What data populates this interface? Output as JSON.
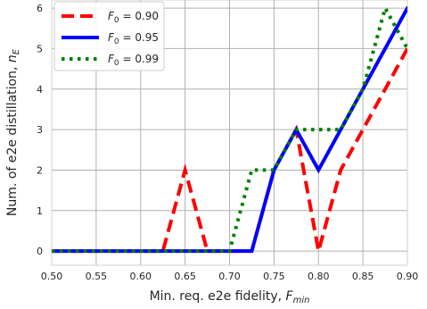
{
  "chart_data": {
    "type": "line",
    "xlabel": "Min. req. e2e fidelity, ",
    "xlabel_var": "F",
    "xlabel_sub": "min",
    "ylabel": "Num. of e2e distillation, ",
    "ylabel_var": "n",
    "ylabel_sub": "E",
    "xlim": [
      0.5,
      0.9
    ],
    "ylim": [
      -0.35,
      6.2
    ],
    "xticks": [
      "0.50",
      "0.55",
      "0.60",
      "0.65",
      "0.70",
      "0.75",
      "0.80",
      "0.85",
      "0.90"
    ],
    "yticks": [
      "0",
      "1",
      "2",
      "3",
      "4",
      "5",
      "6"
    ],
    "grid": true,
    "legend_position": "upper-left",
    "series": [
      {
        "name": "0.90",
        "legend_prefix": "F",
        "legend_sub": "0",
        "color": "#ff0000",
        "style": "dashed",
        "x": [
          0.5,
          0.525,
          0.55,
          0.575,
          0.6,
          0.625,
          0.65,
          0.675,
          0.7,
          0.725,
          0.75,
          0.775,
          0.8,
          0.825,
          0.85,
          0.875,
          0.9
        ],
        "y": [
          0,
          0,
          0,
          0,
          0,
          0,
          2,
          0,
          0,
          0,
          2,
          3,
          0,
          2,
          3,
          4,
          5
        ]
      },
      {
        "name": "0.95",
        "legend_prefix": "F",
        "legend_sub": "0",
        "color": "#0000ff",
        "style": "solid",
        "x": [
          0.5,
          0.525,
          0.55,
          0.575,
          0.6,
          0.625,
          0.65,
          0.675,
          0.7,
          0.725,
          0.75,
          0.775,
          0.8,
          0.825,
          0.85,
          0.875,
          0.9
        ],
        "y": [
          0,
          0,
          0,
          0,
          0,
          0,
          0,
          0,
          0,
          0,
          2,
          3,
          2,
          3,
          4,
          5,
          6
        ]
      },
      {
        "name": "0.99",
        "legend_prefix": "F",
        "legend_sub": "0",
        "color": "#008000",
        "style": "dotted",
        "x": [
          0.5,
          0.525,
          0.55,
          0.575,
          0.6,
          0.625,
          0.65,
          0.675,
          0.7,
          0.725,
          0.75,
          0.775,
          0.8,
          0.825,
          0.85,
          0.875,
          0.9
        ],
        "y": [
          0,
          0,
          0,
          0,
          0,
          0,
          0,
          0,
          0,
          2,
          2,
          3,
          3,
          3,
          4,
          6,
          5
        ]
      }
    ]
  }
}
